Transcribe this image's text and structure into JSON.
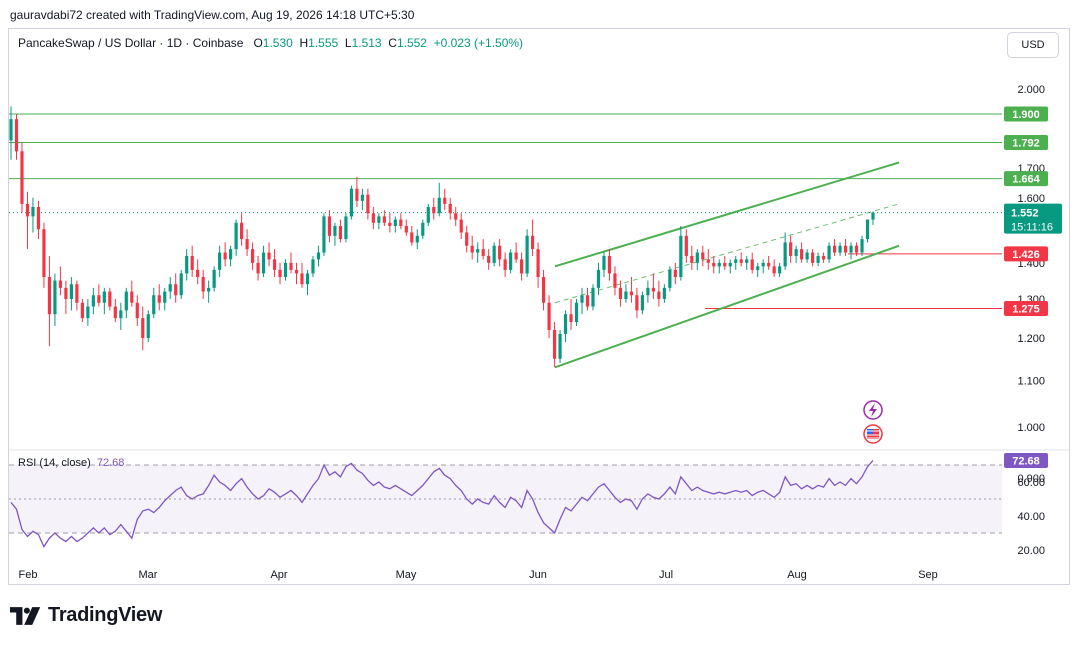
{
  "header": {
    "attribution": "gauravdabi72 created with TradingView.com, Aug 19, 2026 14:18 UTC+5:30"
  },
  "symbol": {
    "name": "PancakeSwap / US Dollar · 1D · Coinbase",
    "o_label": "O",
    "o": "1.530",
    "h_label": "H",
    "h": "1.555",
    "l_label": "L",
    "l": "1.513",
    "c_label": "C",
    "c": "1.552",
    "change": "+0.023 (+1.50%)"
  },
  "currency_button": "USD",
  "rsi": {
    "label": "RSI (14, close)",
    "value": "72.68"
  },
  "footer": {
    "logo_text": "TradingView"
  },
  "colors": {
    "up": "#089981",
    "down": "#f23645",
    "green_line": "#4caf50",
    "red_line": "#f23645",
    "rsi": "#7e57c2"
  },
  "chart_data": {
    "type": "candlestick",
    "y_scale": "log",
    "y_ticks": [
      "2.000",
      "1.700",
      "1.600",
      "1.400",
      "1.300",
      "1.200",
      "1.100",
      "1.000",
      "0.900"
    ],
    "x_ticks": [
      "Feb",
      "Mar",
      "Apr",
      "May",
      "Jun",
      "Jul",
      "Aug",
      "Sep"
    ],
    "candles": [
      [
        1.8,
        1.93,
        1.73,
        1.88
      ],
      [
        1.88,
        1.9,
        1.73,
        1.76
      ],
      [
        1.76,
        1.79,
        1.55,
        1.58
      ],
      [
        1.58,
        1.62,
        1.44,
        1.54
      ],
      [
        1.54,
        1.6,
        1.49,
        1.57
      ],
      [
        1.57,
        1.59,
        1.47,
        1.5
      ],
      [
        1.5,
        1.52,
        1.33,
        1.36
      ],
      [
        1.36,
        1.42,
        1.18,
        1.26
      ],
      [
        1.26,
        1.37,
        1.23,
        1.35
      ],
      [
        1.35,
        1.39,
        1.31,
        1.33
      ],
      [
        1.33,
        1.35,
        1.26,
        1.3
      ],
      [
        1.3,
        1.36,
        1.27,
        1.34
      ],
      [
        1.34,
        1.35,
        1.27,
        1.29
      ],
      [
        1.29,
        1.3,
        1.24,
        1.25
      ],
      [
        1.25,
        1.3,
        1.23,
        1.28
      ],
      [
        1.28,
        1.33,
        1.26,
        1.31
      ],
      [
        1.31,
        1.34,
        1.28,
        1.29
      ],
      [
        1.29,
        1.33,
        1.26,
        1.32
      ],
      [
        1.32,
        1.33,
        1.27,
        1.28
      ],
      [
        1.28,
        1.3,
        1.24,
        1.25
      ],
      [
        1.25,
        1.29,
        1.22,
        1.27
      ],
      [
        1.27,
        1.33,
        1.25,
        1.32
      ],
      [
        1.32,
        1.35,
        1.28,
        1.29
      ],
      [
        1.29,
        1.31,
        1.23,
        1.25
      ],
      [
        1.25,
        1.28,
        1.17,
        1.2
      ],
      [
        1.2,
        1.27,
        1.19,
        1.26
      ],
      [
        1.26,
        1.33,
        1.25,
        1.31
      ],
      [
        1.31,
        1.34,
        1.27,
        1.29
      ],
      [
        1.29,
        1.33,
        1.27,
        1.32
      ],
      [
        1.32,
        1.36,
        1.3,
        1.34
      ],
      [
        1.34,
        1.37,
        1.29,
        1.31
      ],
      [
        1.31,
        1.38,
        1.3,
        1.37
      ],
      [
        1.37,
        1.44,
        1.35,
        1.42
      ],
      [
        1.42,
        1.45,
        1.36,
        1.38
      ],
      [
        1.38,
        1.41,
        1.34,
        1.36
      ],
      [
        1.36,
        1.38,
        1.3,
        1.32
      ],
      [
        1.32,
        1.35,
        1.29,
        1.33
      ],
      [
        1.33,
        1.39,
        1.32,
        1.38
      ],
      [
        1.38,
        1.45,
        1.36,
        1.43
      ],
      [
        1.43,
        1.46,
        1.39,
        1.41
      ],
      [
        1.41,
        1.45,
        1.39,
        1.44
      ],
      [
        1.44,
        1.53,
        1.42,
        1.52
      ],
      [
        1.52,
        1.55,
        1.45,
        1.47
      ],
      [
        1.47,
        1.5,
        1.42,
        1.44
      ],
      [
        1.44,
        1.46,
        1.38,
        1.4
      ],
      [
        1.4,
        1.42,
        1.35,
        1.37
      ],
      [
        1.37,
        1.45,
        1.36,
        1.43
      ],
      [
        1.43,
        1.46,
        1.39,
        1.41
      ],
      [
        1.41,
        1.44,
        1.36,
        1.38
      ],
      [
        1.38,
        1.4,
        1.34,
        1.36
      ],
      [
        1.36,
        1.41,
        1.35,
        1.4
      ],
      [
        1.4,
        1.43,
        1.37,
        1.38
      ],
      [
        1.38,
        1.4,
        1.34,
        1.37
      ],
      [
        1.37,
        1.4,
        1.33,
        1.34
      ],
      [
        1.34,
        1.38,
        1.31,
        1.37
      ],
      [
        1.37,
        1.42,
        1.36,
        1.41
      ],
      [
        1.41,
        1.45,
        1.39,
        1.43
      ],
      [
        1.43,
        1.55,
        1.42,
        1.54
      ],
      [
        1.54,
        1.56,
        1.46,
        1.48
      ],
      [
        1.48,
        1.52,
        1.45,
        1.51
      ],
      [
        1.51,
        1.53,
        1.46,
        1.47
      ],
      [
        1.47,
        1.55,
        1.46,
        1.54
      ],
      [
        1.54,
        1.64,
        1.53,
        1.63
      ],
      [
        1.63,
        1.67,
        1.57,
        1.59
      ],
      [
        1.59,
        1.63,
        1.56,
        1.61
      ],
      [
        1.61,
        1.63,
        1.53,
        1.55
      ],
      [
        1.55,
        1.57,
        1.5,
        1.52
      ],
      [
        1.52,
        1.55,
        1.5,
        1.54
      ],
      [
        1.54,
        1.56,
        1.51,
        1.52
      ],
      [
        1.52,
        1.55,
        1.49,
        1.51
      ],
      [
        1.51,
        1.54,
        1.49,
        1.53
      ],
      [
        1.53,
        1.55,
        1.5,
        1.51
      ],
      [
        1.51,
        1.53,
        1.48,
        1.49
      ],
      [
        1.49,
        1.51,
        1.45,
        1.46
      ],
      [
        1.46,
        1.5,
        1.44,
        1.48
      ],
      [
        1.48,
        1.53,
        1.47,
        1.52
      ],
      [
        1.52,
        1.58,
        1.51,
        1.57
      ],
      [
        1.57,
        1.6,
        1.53,
        1.55
      ],
      [
        1.55,
        1.65,
        1.54,
        1.6
      ],
      [
        1.6,
        1.63,
        1.56,
        1.58
      ],
      [
        1.58,
        1.6,
        1.53,
        1.55
      ],
      [
        1.55,
        1.57,
        1.51,
        1.53
      ],
      [
        1.53,
        1.55,
        1.47,
        1.49
      ],
      [
        1.49,
        1.51,
        1.43,
        1.45
      ],
      [
        1.45,
        1.48,
        1.41,
        1.43
      ],
      [
        1.43,
        1.46,
        1.4,
        1.44
      ],
      [
        1.44,
        1.47,
        1.41,
        1.42
      ],
      [
        1.42,
        1.44,
        1.38,
        1.4
      ],
      [
        1.4,
        1.46,
        1.39,
        1.45
      ],
      [
        1.45,
        1.47,
        1.39,
        1.41
      ],
      [
        1.41,
        1.43,
        1.36,
        1.38
      ],
      [
        1.38,
        1.44,
        1.37,
        1.43
      ],
      [
        1.43,
        1.46,
        1.4,
        1.41
      ],
      [
        1.41,
        1.43,
        1.35,
        1.37
      ],
      [
        1.37,
        1.5,
        1.36,
        1.48
      ],
      [
        1.48,
        1.53,
        1.42,
        1.44
      ],
      [
        1.44,
        1.46,
        1.33,
        1.36
      ],
      [
        1.36,
        1.38,
        1.27,
        1.29
      ],
      [
        1.29,
        1.31,
        1.2,
        1.22
      ],
      [
        1.22,
        1.24,
        1.13,
        1.15
      ],
      [
        1.15,
        1.22,
        1.14,
        1.21
      ],
      [
        1.21,
        1.27,
        1.19,
        1.26
      ],
      [
        1.26,
        1.3,
        1.22,
        1.24
      ],
      [
        1.24,
        1.3,
        1.23,
        1.29
      ],
      [
        1.29,
        1.33,
        1.26,
        1.31
      ],
      [
        1.31,
        1.33,
        1.27,
        1.28
      ],
      [
        1.28,
        1.34,
        1.27,
        1.33
      ],
      [
        1.33,
        1.4,
        1.31,
        1.38
      ],
      [
        1.38,
        1.43,
        1.36,
        1.42
      ],
      [
        1.42,
        1.44,
        1.35,
        1.37
      ],
      [
        1.37,
        1.39,
        1.31,
        1.33
      ],
      [
        1.33,
        1.35,
        1.28,
        1.3
      ],
      [
        1.3,
        1.34,
        1.29,
        1.32
      ],
      [
        1.32,
        1.36,
        1.29,
        1.31
      ],
      [
        1.31,
        1.33,
        1.25,
        1.27
      ],
      [
        1.27,
        1.32,
        1.26,
        1.31
      ],
      [
        1.31,
        1.35,
        1.29,
        1.33
      ],
      [
        1.33,
        1.37,
        1.3,
        1.32
      ],
      [
        1.32,
        1.35,
        1.28,
        1.3
      ],
      [
        1.3,
        1.34,
        1.29,
        1.33
      ],
      [
        1.33,
        1.39,
        1.32,
        1.38
      ],
      [
        1.38,
        1.4,
        1.34,
        1.36
      ],
      [
        1.36,
        1.51,
        1.35,
        1.48
      ],
      [
        1.48,
        1.5,
        1.4,
        1.42
      ],
      [
        1.42,
        1.45,
        1.38,
        1.4
      ],
      [
        1.4,
        1.44,
        1.38,
        1.43
      ],
      [
        1.43,
        1.45,
        1.39,
        1.41
      ],
      [
        1.41,
        1.44,
        1.38,
        1.4
      ],
      [
        1.4,
        1.42,
        1.37,
        1.39
      ],
      [
        1.39,
        1.41,
        1.37,
        1.4
      ],
      [
        1.4,
        1.42,
        1.38,
        1.39
      ],
      [
        1.39,
        1.41,
        1.37,
        1.4
      ],
      [
        1.4,
        1.42,
        1.38,
        1.41
      ],
      [
        1.41,
        1.43,
        1.39,
        1.4
      ],
      [
        1.4,
        1.42,
        1.38,
        1.41
      ],
      [
        1.41,
        1.43,
        1.37,
        1.38
      ],
      [
        1.38,
        1.4,
        1.36,
        1.39
      ],
      [
        1.39,
        1.41,
        1.37,
        1.4
      ],
      [
        1.4,
        1.42,
        1.38,
        1.39
      ],
      [
        1.39,
        1.41,
        1.36,
        1.37
      ],
      [
        1.37,
        1.4,
        1.36,
        1.39
      ],
      [
        1.39,
        1.49,
        1.38,
        1.46
      ],
      [
        1.46,
        1.48,
        1.4,
        1.42
      ],
      [
        1.42,
        1.45,
        1.4,
        1.44
      ],
      [
        1.44,
        1.46,
        1.4,
        1.41
      ],
      [
        1.41,
        1.44,
        1.4,
        1.43
      ],
      [
        1.43,
        1.44,
        1.39,
        1.4
      ],
      [
        1.4,
        1.43,
        1.39,
        1.42
      ],
      [
        1.42,
        1.43,
        1.4,
        1.41
      ],
      [
        1.41,
        1.46,
        1.4,
        1.45
      ],
      [
        1.45,
        1.47,
        1.42,
        1.43
      ],
      [
        1.43,
        1.46,
        1.42,
        1.45
      ],
      [
        1.45,
        1.47,
        1.42,
        1.43
      ],
      [
        1.43,
        1.46,
        1.41,
        1.45
      ],
      [
        1.45,
        1.46,
        1.42,
        1.43
      ],
      [
        1.43,
        1.48,
        1.42,
        1.47
      ],
      [
        1.47,
        1.53,
        1.46,
        1.53
      ],
      [
        1.53,
        1.555,
        1.513,
        1.552
      ]
    ],
    "rsi_values": [
      48,
      44,
      32,
      28,
      31,
      29,
      22,
      27,
      30,
      27,
      25,
      28,
      25,
      27,
      30,
      33,
      30,
      33,
      29,
      31,
      35,
      31,
      27,
      38,
      43,
      44,
      42,
      45,
      49,
      52,
      55,
      57,
      52,
      50,
      52,
      53,
      58,
      64,
      60,
      58,
      55,
      59,
      62,
      57,
      53,
      50,
      52,
      56,
      54,
      51,
      53,
      55,
      52,
      48,
      53,
      58,
      62,
      70,
      64,
      66,
      63,
      69,
      71,
      67,
      65,
      61,
      58,
      60,
      57,
      56,
      58,
      56,
      54,
      52,
      55,
      58,
      62,
      66,
      68,
      64,
      62,
      58,
      55,
      50,
      47,
      50,
      48,
      47,
      52,
      48,
      45,
      51,
      49,
      45,
      55,
      50,
      42,
      36,
      33,
      30,
      38,
      45,
      43,
      47,
      51,
      49,
      53,
      57,
      59,
      55,
      51,
      48,
      50,
      49,
      44,
      50,
      53,
      51,
      50,
      53,
      57,
      53,
      63,
      59,
      55,
      57,
      55,
      54,
      53,
      54,
      53,
      54,
      55,
      54,
      55,
      52,
      54,
      55,
      53,
      51,
      54,
      63,
      58,
      59,
      56,
      58,
      56,
      58,
      57,
      62,
      58,
      60,
      58,
      62,
      59,
      63,
      69,
      72.68
    ],
    "channel": {
      "upper": [
        [
          0,
          1.39
        ],
        [
          100,
          1.72
        ]
      ],
      "middle": [
        [
          0,
          1.29
        ],
        [
          100,
          1.58
        ]
      ],
      "lower": [
        [
          0,
          1.13
        ],
        [
          100,
          1.45
        ]
      ]
    },
    "horizontal_levels": [
      {
        "price": 1.9,
        "label": "1.900",
        "color": "#4caf50"
      },
      {
        "price": 1.792,
        "label": "1.792",
        "color": "#4caf50"
      },
      {
        "price": 1.664,
        "label": "1.664",
        "color": "#4caf50"
      },
      {
        "price": 1.426,
        "label": "1.426",
        "color": "#f23645"
      },
      {
        "price": 1.275,
        "label": "1.275",
        "color": "#f23645"
      }
    ],
    "last_price": {
      "price": 1.552,
      "label": "1.552",
      "countdown": "15:11:16"
    },
    "rsi_ticks": [
      "60.00",
      "40.00",
      "20.00"
    ],
    "rsi_bands": [
      70,
      50,
      30
    ]
  }
}
